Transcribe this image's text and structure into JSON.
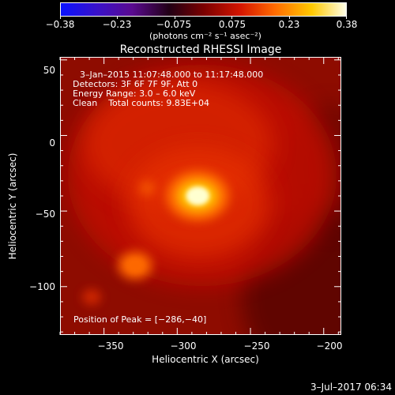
{
  "colorbar": {
    "tick_labels": [
      "−0.38",
      "−0.23",
      "−0.075",
      "0.075",
      "0.23",
      "0.38"
    ],
    "unit_label": "(photons cm⁻² s⁻¹ asec⁻²)",
    "range": [
      -0.38,
      0.38
    ],
    "colors": [
      "#0a13ff",
      "#3a11c8",
      "#5a0a90",
      "#210015",
      "#7a0000",
      "#d41500",
      "#ff6a00",
      "#ffc800",
      "#ffffe8"
    ]
  },
  "image": {
    "title": "Reconstructed RHESSI Image",
    "info_lines": [
      "3–Jan–2015 11:07:48.000 to 11:17:48.000",
      "Detectors: 3F 6F 7F 9F, Att 0",
      "Energy Range: 3.0 – 6.0 keV",
      "Clean    Total counts: 9.83E+04"
    ],
    "peak_label": "Position of Peak = [−286,−40]",
    "peak_position": [
      -286,
      -40
    ],
    "flux_colors": [
      "#000",
      "#3a0000",
      "#860400",
      "#c41000",
      "#e83000",
      "#ff6a00",
      "#ffc000",
      "#ffffd0"
    ]
  },
  "axes": {
    "xlabel": "Heliocentric X (arcsec)",
    "ylabel": "Heliocentric Y (arcsec)",
    "xlim": [
      -380,
      -188
    ],
    "ylim": [
      -132,
      52
    ],
    "x_ticks": [
      -350,
      -300,
      -250,
      -200
    ],
    "x_tick_labels": [
      "−350",
      "−300",
      "−250",
      "−200"
    ],
    "y_ticks": [
      50,
      0,
      -50,
      -100
    ],
    "y_tick_labels": [
      "50",
      "0",
      "−50",
      "−100"
    ],
    "x_minor_step": 10,
    "y_minor_step": 10
  },
  "footer": {
    "timestamp": "3–Jul–2017 06:34"
  }
}
